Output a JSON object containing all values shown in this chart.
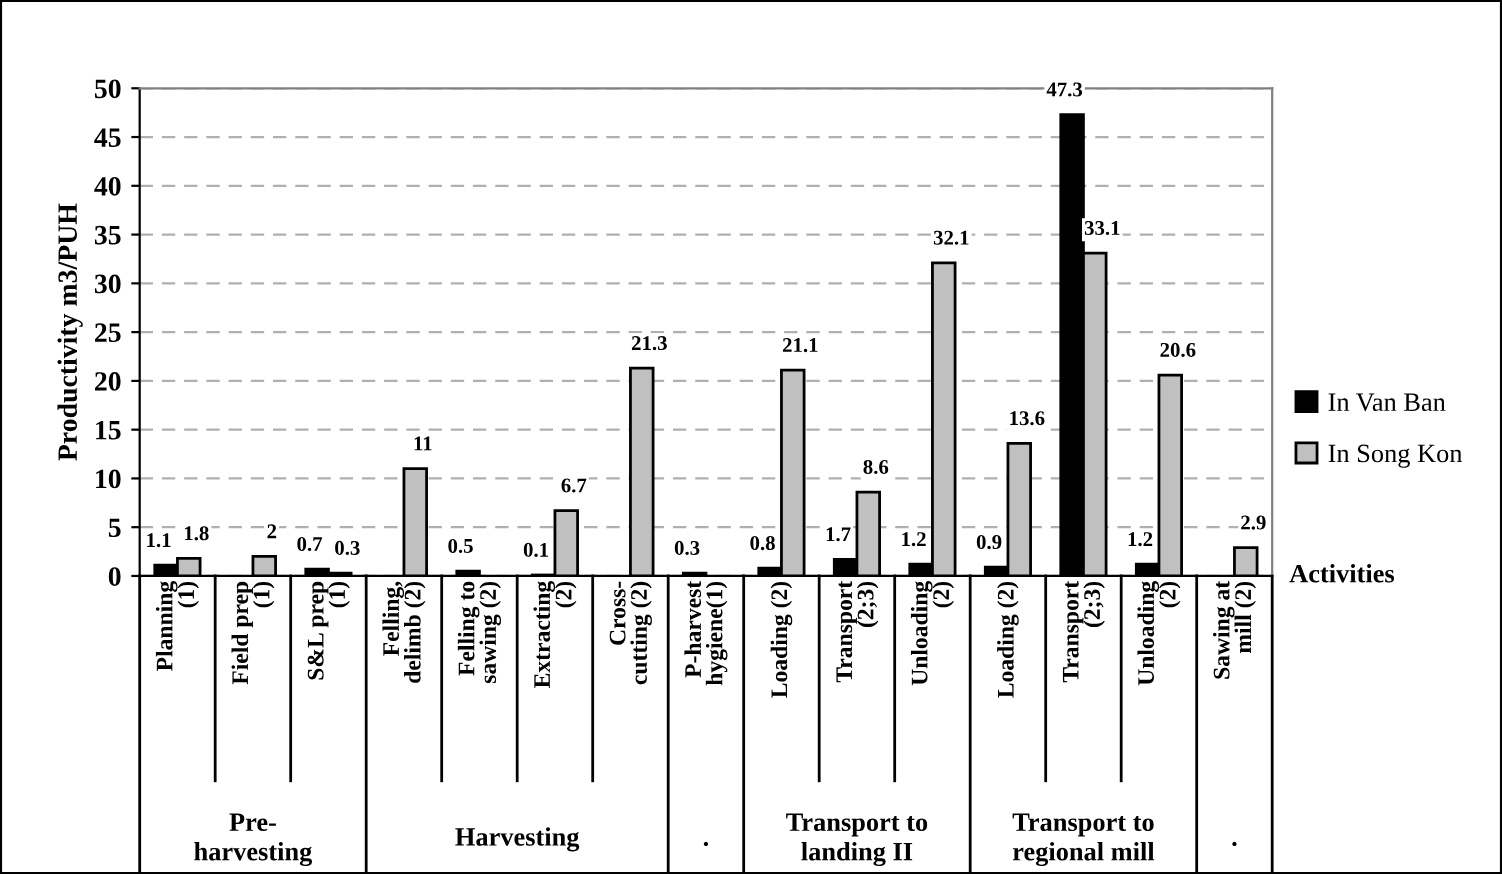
{
  "chart_data": {
    "type": "bar",
    "ylabel": "Productivity m3/PUH",
    "xlabel": "Activities",
    "categories": [
      "Planning\n(1)",
      "Field prep\n(1)",
      "S&L prep\n(1)",
      "Felling,\ndelimb (2)",
      "Felling to\nsawing (2)",
      "Extracting\n(2)",
      "Cross-\ncutting (2)",
      "P-harvest\nhygiene(1)",
      "Loading (2)",
      "Transport\n(2;3)",
      "Unloading\n(2)",
      "Loading (2)",
      "Transport\n(2;3)",
      "Unloading\n(2)",
      "Sawing at\nmill (2)"
    ],
    "series": [
      {
        "name": "In Van Ban",
        "color": "#000000",
        "values": [
          1.1,
          null,
          0.7,
          null,
          0.5,
          0.1,
          null,
          0.3,
          0.8,
          1.7,
          1.2,
          0.9,
          47.3,
          1.2,
          null
        ],
        "value_labels": [
          "1.1",
          null,
          "0.7",
          null,
          "0.5",
          "0.1",
          null,
          "0.3",
          "0.8",
          "1.7",
          "1.2",
          "0.9",
          "47.3",
          "1.2",
          null
        ]
      },
      {
        "name": "In Song Kon",
        "color": "#c0c0c0",
        "values": [
          1.8,
          2,
          0.3,
          11,
          null,
          6.7,
          21.3,
          null,
          21.1,
          8.6,
          32.1,
          13.6,
          33.1,
          20.6,
          2.9
        ],
        "value_labels": [
          "1.8",
          "2",
          "0.3",
          "11",
          null,
          "6.7",
          "21.3",
          null,
          "21.1",
          "8.6",
          "32.1",
          "13.6",
          "33.1",
          "20.6",
          "2.9"
        ]
      }
    ],
    "annotations": [
      "Pre-\nharvesting",
      "Harvesting",
      ".",
      "Transport to\nlanding II",
      "Transport to\nregional mill",
      "."
    ],
    "ylim": [
      0,
      50
    ],
    "yticks": [
      0,
      5,
      10,
      15,
      20,
      25,
      30,
      35,
      40,
      45,
      50
    ],
    "grid": "y",
    "legend": "right"
  }
}
